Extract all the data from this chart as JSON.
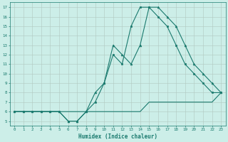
{
  "xlabel": "Humidex (Indice chaleur)",
  "background_color": "#cceee8",
  "grid_color": "#b0c8c0",
  "line_color": "#1a7a6e",
  "xlim": [
    -0.5,
    23.5
  ],
  "ylim": [
    4.5,
    17.5
  ],
  "xticks": [
    0,
    1,
    2,
    3,
    4,
    5,
    6,
    7,
    8,
    9,
    10,
    11,
    12,
    13,
    14,
    15,
    16,
    17,
    18,
    19,
    20,
    21,
    22,
    23
  ],
  "yticks": [
    5,
    6,
    7,
    8,
    9,
    10,
    11,
    12,
    13,
    14,
    15,
    16,
    17
  ],
  "series": [
    {
      "x": [
        0,
        1,
        2,
        3,
        4,
        5,
        6,
        7,
        8,
        9,
        10,
        11,
        12,
        13,
        14,
        15,
        16,
        17,
        18,
        19,
        20,
        21,
        22,
        23
      ],
      "y": [
        6,
        6,
        6,
        6,
        6,
        6,
        6,
        6,
        6,
        6,
        6,
        6,
        6,
        6,
        6,
        7,
        7,
        7,
        7,
        7,
        7,
        7,
        7,
        8
      ],
      "marker": null,
      "linewidth": 0.8
    },
    {
      "x": [
        0,
        1,
        2,
        3,
        4,
        5,
        6,
        7,
        8,
        9,
        10,
        11,
        12,
        13,
        14,
        15,
        16,
        17,
        18,
        19,
        20,
        21,
        22,
        23
      ],
      "y": [
        6,
        6,
        6,
        6,
        6,
        6,
        5,
        5,
        6,
        7,
        9,
        12,
        11,
        15,
        17,
        17,
        16,
        15,
        13,
        11,
        10,
        9,
        8,
        8
      ],
      "marker": "s",
      "linewidth": 0.8
    },
    {
      "x": [
        0,
        1,
        2,
        3,
        4,
        5,
        6,
        7,
        8,
        9,
        10,
        11,
        12,
        13,
        14,
        15,
        16,
        17,
        18,
        19,
        20,
        21,
        22,
        23
      ],
      "y": [
        6,
        6,
        6,
        6,
        6,
        6,
        5,
        5,
        6,
        8,
        9,
        13,
        12,
        11,
        13,
        17,
        17,
        16,
        15,
        13,
        11,
        10,
        9,
        8
      ],
      "marker": "^",
      "linewidth": 0.8
    }
  ]
}
